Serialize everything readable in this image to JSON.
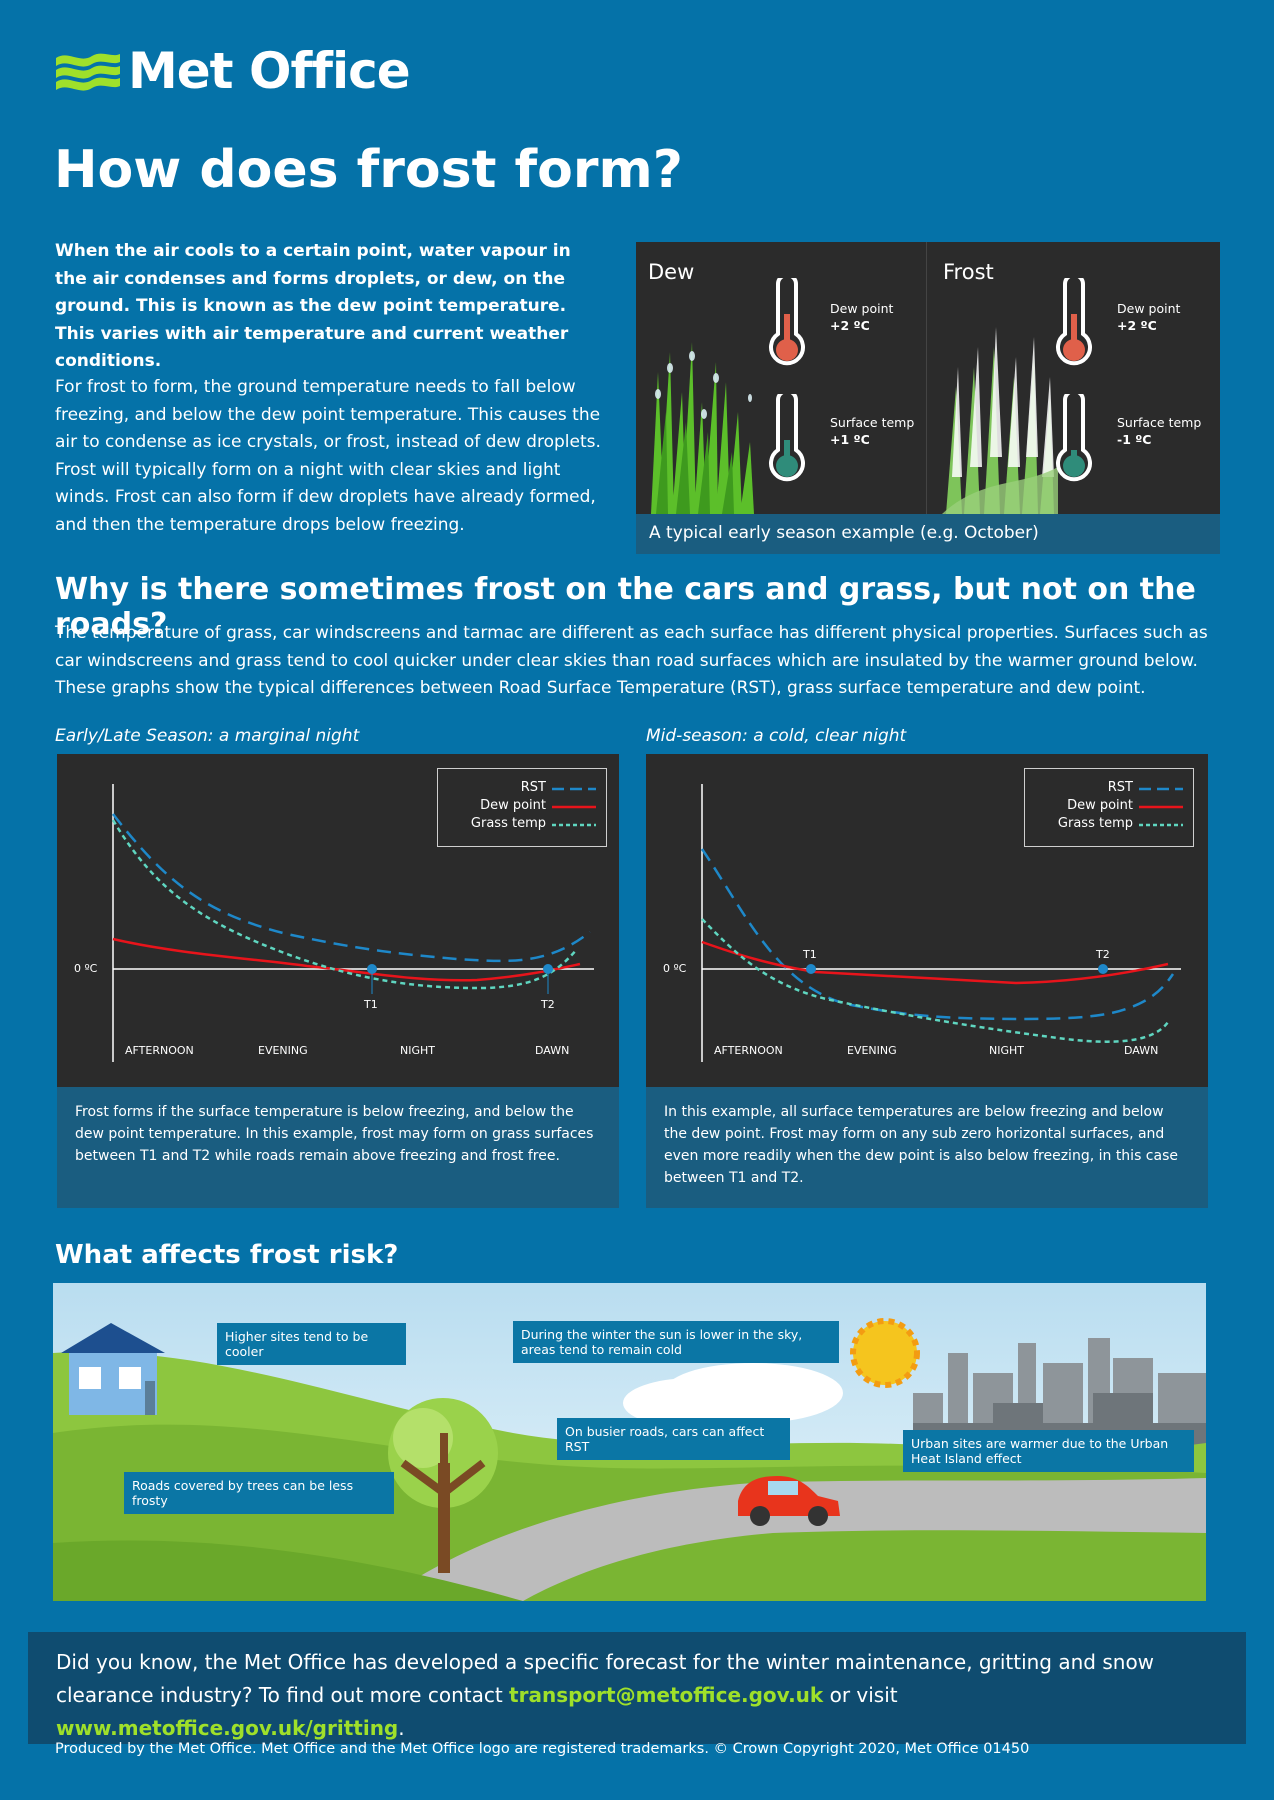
{
  "brand": {
    "name": "Met Office"
  },
  "page_title": "How does frost form?",
  "intro": {
    "bold": "When the air cools to a certain point, water vapour in the air condenses and forms droplets, or dew, on the ground. This is known as the dew point temperature. This varies with air temperature and current weather conditions.",
    "body": "For frost to form, the ground temperature needs to fall below freezing, and below the dew point temperature. This causes the air to condense as ice crystals, or frost, instead of dew droplets. Frost will typically form on a night with clear skies and light winds. Frost can also form if dew droplets have already formed, and then the temperature drops below freezing."
  },
  "dew_frost_panel": {
    "dew": {
      "title": "Dew",
      "dew_point_label": "Dew point",
      "dew_point_value": "+2 ºC",
      "surface_label": "Surface temp",
      "surface_value": "+1 ºC"
    },
    "frost": {
      "title": "Frost",
      "dew_point_label": "Dew point",
      "dew_point_value": "+2 ºC",
      "surface_label": "Surface temp",
      "surface_value": "-1 ºC"
    },
    "caption": "A typical early season example (e.g. October)"
  },
  "why": {
    "heading": "Why is there sometimes frost on the cars and grass, but not on the roads?",
    "body": "The temperature of grass, car windscreens and tarmac are different as each surface has different physical properties. Surfaces such as car windscreens and grass tend to cool quicker under clear skies than road surfaces which are insulated by the warmer ground below. These graphs show the typical differences between Road Surface Temperature (RST), grass surface temperature and dew point."
  },
  "graphs": [
    {
      "subtitle": "Early/Late Season: a marginal night",
      "caption": "Frost forms if the surface temperature is below freezing, and below the dew point temperature. In this example, frost may form on grass surfaces between T1 and T2 while roads remain above freezing and frost free.",
      "zero_label": "0 ºC",
      "t1": "T1",
      "t2": "T2",
      "periods": [
        "AFTERNOON",
        "EVENING",
        "NIGHT",
        "DAWN"
      ]
    },
    {
      "subtitle": "Mid-season: a cold, clear night",
      "caption": "In this example, all surface temperatures are below freezing and below the dew point. Frost may form on any sub zero horizontal surfaces, and even more readily when the dew point is also below freezing, in this case between T1 and T2.",
      "zero_label": "0 ºC",
      "t1": "T1",
      "t2": "T2",
      "periods": [
        "AFTERNOON",
        "EVENING",
        "NIGHT",
        "DAWN"
      ]
    }
  ],
  "legend": {
    "rst": "RST",
    "dew": "Dew point",
    "grass": "Grass temp"
  },
  "colors": {
    "rst": "#1e88c9",
    "dew": "#e8141b",
    "grass": "#5fd6c0",
    "accent": "#9fe02a"
  },
  "risk": {
    "heading": "What affects frost risk?",
    "callouts": {
      "higher": "Higher sites tend to be cooler",
      "sun": "During the winter the sun is lower in the sky, areas tend to remain cold",
      "busy": "On busier roads, cars can affect RST",
      "urban": "Urban sites are warmer due to the Urban Heat Island effect",
      "trees": "Roads covered by trees can be less frosty"
    }
  },
  "footer": {
    "text1": "Did you know, the Met Office has developed a specific forecast for the winter maintenance, gritting and snow clearance industry? To find out more contact ",
    "email": "transport@metoffice.gov.uk",
    "text2": " or visit ",
    "url": "www.metoffice.gov.uk/gritting",
    "text3": "."
  },
  "credit": "Produced by the Met Office. Met Office and the Met Office logo are registered trademarks. © Crown Copyright 2020, Met Office  01450"
}
